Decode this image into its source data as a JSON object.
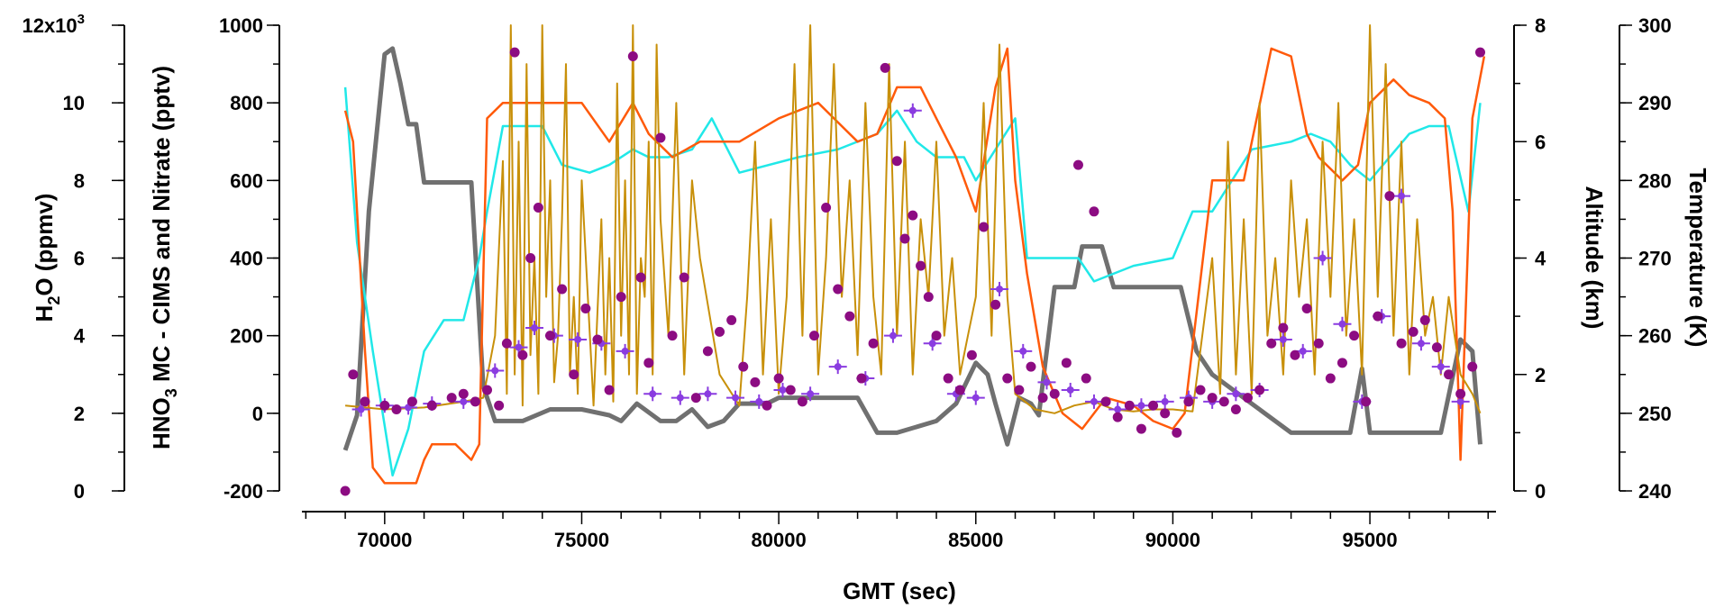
{
  "chart_data": {
    "type": "line",
    "xlabel": "GMT (sec)",
    "x_ticks": [
      "70000",
      "75000",
      "80000",
      "85000",
      "90000",
      "95000"
    ],
    "xlim": [
      67900,
      98200
    ],
    "axes": {
      "h2o": {
        "label": "H2O (ppmv)",
        "label_main": "H",
        "label_sub": "2",
        "label_rest": "O (ppmv)",
        "ylim": [
          0,
          12000
        ],
        "tick_values": [
          0,
          2000,
          4000,
          6000,
          8000,
          10000,
          12000
        ],
        "tick_labels": [
          "0",
          "2",
          "4",
          "6",
          "8",
          "10",
          "12x10"
        ],
        "top_exponent": "3"
      },
      "hno3": {
        "label": "HNO3 MC - CIMS and Nitrate (pptv)",
        "label_main": "HNO",
        "label_sub": "3",
        "label_rest": " MC - CIMS and Nitrate (pptv)",
        "ylim": [
          -200,
          1000
        ],
        "tick_values": [
          -200,
          0,
          200,
          400,
          600,
          800,
          1000
        ],
        "tick_labels": [
          "-200",
          "0",
          "200",
          "400",
          "600",
          "800",
          "1000"
        ]
      },
      "altitude": {
        "label": "Altitude (km)",
        "ylim": [
          0,
          8
        ],
        "tick_values": [
          0,
          2,
          4,
          6,
          8
        ],
        "tick_labels": [
          "0",
          "2",
          "4",
          "6",
          "8"
        ]
      },
      "temperature": {
        "label": "Temperature (K)",
        "ylim": [
          240,
          300
        ],
        "tick_values": [
          240,
          250,
          260,
          270,
          280,
          290,
          300
        ],
        "tick_labels": [
          "240",
          "250",
          "260",
          "270",
          "280",
          "290",
          "300"
        ]
      }
    },
    "series": [
      {
        "axis": "altitude",
        "color": "#707070",
        "x": [
          69000,
          69300,
          69600,
          70000,
          70200,
          70400,
          70600,
          70800,
          71000,
          71200,
          71800,
          72200,
          72500,
          72800,
          73500,
          74200,
          75000,
          75700,
          76000,
          76400,
          77000,
          77400,
          77800,
          78200,
          78600,
          79000,
          79700,
          80000,
          81000,
          82000,
          82500,
          83000,
          84000,
          84500,
          85000,
          85300,
          85500,
          85800,
          86100,
          86400,
          86600,
          87000,
          87500,
          87700,
          88200,
          88500,
          89000,
          89500,
          90200,
          90600,
          91000,
          92000,
          93000,
          93400,
          93800,
          94500,
          94800,
          95000,
          96000,
          96800,
          97300,
          97600,
          97800
        ],
        "y": [
          0.7,
          1.3,
          4.8,
          7.5,
          7.6,
          7.0,
          6.3,
          6.3,
          5.3,
          5.3,
          5.3,
          5.3,
          1.8,
          1.2,
          1.2,
          1.4,
          1.4,
          1.3,
          1.2,
          1.5,
          1.2,
          1.2,
          1.4,
          1.1,
          1.2,
          1.5,
          1.5,
          1.6,
          1.6,
          1.6,
          1.0,
          1.0,
          1.2,
          1.5,
          2.2,
          2.0,
          1.5,
          0.8,
          1.6,
          1.5,
          1.3,
          3.5,
          3.5,
          4.2,
          4.2,
          3.5,
          3.5,
          3.5,
          3.5,
          2.4,
          2.0,
          1.5,
          1.0,
          1.0,
          1.0,
          1.0,
          2.1,
          1.0,
          1.0,
          1.0,
          2.6,
          2.4,
          0.8
        ]
      },
      {
        "axis": "temperature",
        "color": "#20e8e8",
        "x": [
          69000,
          69300,
          69700,
          70200,
          70600,
          71000,
          71500,
          72000,
          72400,
          72600,
          73000,
          74000,
          74500,
          75200,
          75700,
          76300,
          76700,
          77200,
          77800,
          78300,
          79000,
          80500,
          81500,
          82500,
          83000,
          83500,
          84000,
          84700,
          85000,
          85500,
          86000,
          86300,
          87000,
          87600,
          88000,
          89000,
          90000,
          90500,
          91000,
          92000,
          93000,
          93500,
          94000,
          94500,
          95000,
          96000,
          96500,
          97000,
          97500,
          97800
        ],
        "y": [
          292,
          272,
          258,
          242,
          248,
          258,
          262,
          262,
          270,
          276,
          287,
          287,
          282,
          281,
          282,
          284,
          283,
          283,
          284,
          288,
          281,
          283,
          284,
          286,
          289,
          285,
          283,
          283,
          280,
          284,
          288,
          270,
          270,
          270,
          267,
          269,
          270,
          276,
          276,
          284,
          285,
          286,
          285,
          282,
          280,
          286,
          287,
          287,
          276,
          290
        ]
      },
      {
        "axis": "temperature",
        "color": "#ff5a0a",
        "x": [
          69000,
          69200,
          69500,
          69700,
          70000,
          70400,
          70800,
          71000,
          71200,
          71800,
          72200,
          72400,
          72600,
          73000,
          74000,
          75000,
          75700,
          76300,
          76700,
          77300,
          78000,
          79000,
          80000,
          81000,
          82000,
          82500,
          83000,
          83600,
          84000,
          84500,
          85000,
          85500,
          85800,
          86000,
          86300,
          86700,
          87200,
          87700,
          88300,
          89000,
          89500,
          90000,
          90300,
          91000,
          91800,
          92500,
          93000,
          93400,
          93700,
          94300,
          94700,
          95000,
          95600,
          96000,
          96500,
          96900,
          97100,
          97300,
          97600,
          97900
        ],
        "y": [
          289,
          285,
          258,
          243,
          241,
          241,
          241,
          244,
          246,
          246,
          244,
          246,
          288,
          290,
          290,
          290,
          285,
          290,
          286,
          283,
          285,
          285,
          288,
          290,
          285,
          286,
          292,
          292,
          288,
          283,
          276,
          292,
          297,
          280,
          268,
          256,
          250,
          248,
          252,
          251,
          249,
          248,
          250,
          280,
          280,
          297,
          296,
          286,
          283,
          280,
          282,
          290,
          293,
          291,
          290,
          288,
          276,
          244,
          288,
          296
        ]
      },
      {
        "axis": "hno3",
        "color": "#c8900a",
        "x": [
          69000,
          70000,
          71000,
          72000,
          72500,
          72800,
          73000,
          73100,
          73200,
          73300,
          73400,
          73500,
          73600,
          73700,
          73800,
          73900,
          74000,
          74100,
          74200,
          74300,
          74400,
          74500,
          74600,
          74700,
          74800,
          74900,
          75000,
          75300,
          75500,
          75600,
          75700,
          75800,
          75900,
          76000,
          76100,
          76200,
          76300,
          76400,
          76500,
          76600,
          76700,
          76800,
          76900,
          77000,
          77200,
          77400,
          77600,
          77800,
          78000,
          78500,
          79000,
          79200,
          79400,
          79600,
          79800,
          80000,
          80200,
          80400,
          80600,
          80800,
          81000,
          81200,
          81400,
          81600,
          81800,
          82000,
          82200,
          82400,
          82600,
          82800,
          83000,
          83200,
          83400,
          83600,
          83800,
          84000,
          84200,
          84400,
          84600,
          84800,
          85000,
          85200,
          85400,
          85600,
          85800,
          86000,
          86500,
          87000,
          87500,
          88000,
          88500,
          89000,
          89500,
          90000,
          90500,
          91000,
          91200,
          91400,
          91600,
          91800,
          92000,
          92200,
          92400,
          92600,
          92800,
          93000,
          93200,
          93400,
          93600,
          93800,
          94000,
          94200,
          94400,
          94600,
          94800,
          95000,
          95200,
          95400,
          95600,
          95800,
          96000,
          96200,
          96400,
          96600,
          96800,
          97000,
          97300,
          97600,
          97800
        ],
        "y": [
          20,
          10,
          15,
          30,
          40,
          200,
          650,
          50,
          1000,
          100,
          700,
          20,
          900,
          150,
          400,
          50,
          1000,
          300,
          600,
          80,
          200,
          500,
          900,
          100,
          300,
          50,
          600,
          20,
          500,
          100,
          400,
          30,
          850,
          200,
          600,
          100,
          1000,
          50,
          400,
          300,
          700,
          100,
          950,
          500,
          200,
          800,
          100,
          600,
          400,
          100,
          20,
          300,
          700,
          100,
          500,
          50,
          300,
          900,
          200,
          1000,
          100,
          400,
          900,
          300,
          600,
          150,
          800,
          300,
          100,
          900,
          200,
          700,
          100,
          500,
          300,
          700,
          200,
          400,
          100,
          200,
          300,
          800,
          200,
          950,
          300,
          50,
          10,
          0,
          20,
          30,
          10,
          5,
          10,
          10,
          5,
          400,
          50,
          700,
          100,
          500,
          50,
          800,
          200,
          400,
          100,
          600,
          300,
          500,
          100,
          700,
          300,
          800,
          200,
          500,
          100,
          1000,
          300,
          900,
          200,
          700,
          100,
          500,
          200,
          300,
          100,
          300,
          100,
          50,
          0
        ]
      }
    ],
    "nitrate_points": {
      "axis": "hno3",
      "color": "#8c0c82",
      "x": [
        69000,
        69200,
        69500,
        70000,
        70300,
        70700,
        71200,
        71700,
        72000,
        72300,
        72600,
        72900,
        73100,
        73300,
        73500,
        73700,
        73900,
        74200,
        74500,
        74800,
        75100,
        75400,
        75700,
        76000,
        76300,
        76500,
        76700,
        77000,
        77300,
        77600,
        77900,
        78200,
        78500,
        78800,
        79100,
        79400,
        79700,
        80000,
        80300,
        80600,
        80900,
        81200,
        81500,
        81800,
        82100,
        82400,
        82700,
        83000,
        83200,
        83400,
        83600,
        83800,
        84000,
        84300,
        84600,
        84900,
        85200,
        85500,
        85800,
        86100,
        86400,
        86700,
        87000,
        87300,
        87600,
        87800,
        88000,
        88300,
        88600,
        88900,
        89200,
        89500,
        89800,
        90100,
        90400,
        90700,
        91000,
        91300,
        91600,
        91900,
        92200,
        92500,
        92800,
        93100,
        93400,
        93700,
        94000,
        94300,
        94600,
        94900,
        95200,
        95500,
        95800,
        96100,
        96400,
        96700,
        97000,
        97300,
        97600,
        97800
      ],
      "y": [
        -200,
        100,
        30,
        20,
        10,
        30,
        20,
        40,
        50,
        30,
        60,
        20,
        180,
        930,
        150,
        400,
        530,
        200,
        320,
        100,
        270,
        190,
        60,
        300,
        920,
        350,
        130,
        710,
        200,
        350,
        40,
        160,
        210,
        240,
        120,
        80,
        20,
        90,
        60,
        30,
        200,
        530,
        320,
        250,
        90,
        180,
        890,
        650,
        450,
        510,
        380,
        300,
        200,
        90,
        60,
        150,
        480,
        280,
        90,
        60,
        120,
        40,
        50,
        130,
        640,
        90,
        520,
        30,
        -10,
        20,
        -40,
        20,
        0,
        -50,
        30,
        60,
        40,
        30,
        10,
        40,
        60,
        180,
        220,
        150,
        270,
        180,
        90,
        130,
        200,
        30,
        250,
        560,
        180,
        210,
        240,
        170,
        100,
        50,
        120,
        930
      ]
    },
    "cims_points": {
      "axis": "hno3",
      "color": "#8a3ce0",
      "x": [
        69400,
        70000,
        70600,
        71200,
        72000,
        72800,
        73400,
        73800,
        74300,
        74900,
        75500,
        76100,
        76800,
        77500,
        78200,
        78900,
        79500,
        80100,
        80800,
        81500,
        82200,
        82900,
        83400,
        83900,
        84500,
        85000,
        85600,
        86200,
        86800,
        87400,
        88000,
        88600,
        89200,
        89800,
        90400,
        91000,
        91600,
        92200,
        92800,
        93300,
        93800,
        94300,
        94800,
        95300,
        95800,
        96300,
        96800,
        97300
      ],
      "y": [
        10,
        20,
        15,
        25,
        30,
        110,
        170,
        220,
        200,
        190,
        180,
        160,
        50,
        40,
        50,
        40,
        30,
        60,
        50,
        120,
        90,
        200,
        780,
        180,
        50,
        40,
        320,
        160,
        80,
        60,
        30,
        10,
        20,
        30,
        40,
        30,
        50,
        60,
        190,
        160,
        400,
        230,
        30,
        250,
        560,
        180,
        120,
        30
      ]
    }
  }
}
